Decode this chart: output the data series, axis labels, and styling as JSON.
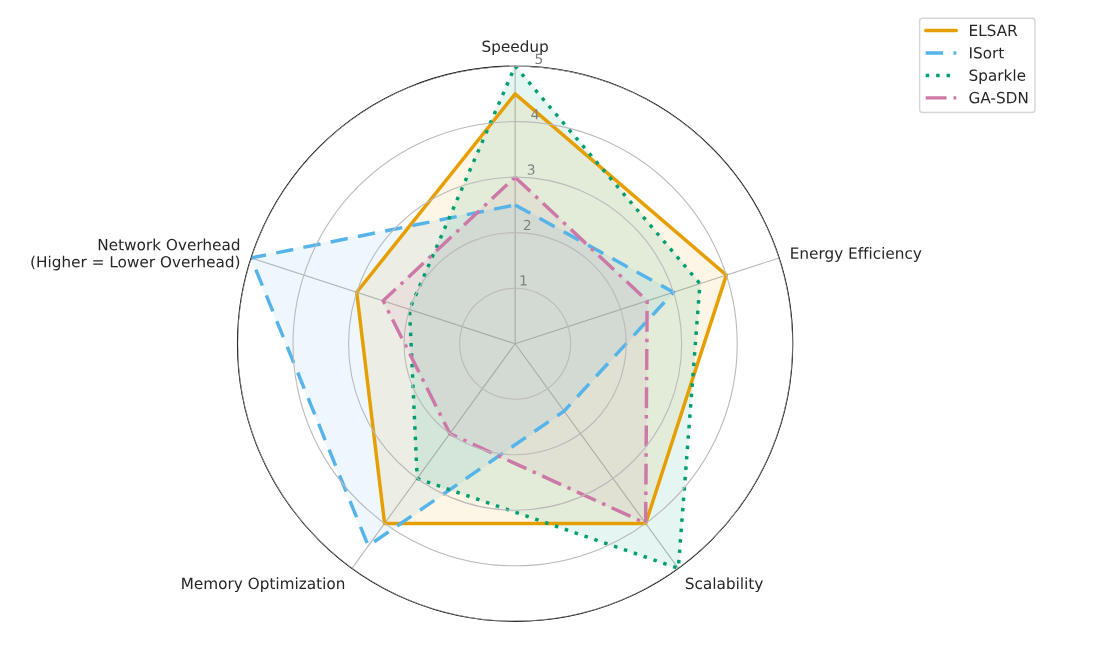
{
  "chart_data": {
    "type": "radar",
    "categories": [
      "Speedup",
      "Energy Efficiency",
      "Scalability",
      "Memory Optimization",
      "Network Overhead\n(Higher = Lower Overhead)"
    ],
    "series": [
      {
        "name": "ELSAR",
        "color": "#e69f00",
        "line_style": "solid",
        "values": [
          4.5,
          4,
          4,
          4,
          3
        ]
      },
      {
        "name": "ISort",
        "color": "#56b4e9",
        "line_style": "dashed",
        "values": [
          2.5,
          3,
          1.5,
          4.5,
          5
        ]
      },
      {
        "name": "Sparkle",
        "color": "#009e73",
        "line_style": "dotted",
        "values": [
          5,
          3.5,
          5,
          3,
          2
        ]
      },
      {
        "name": "GA-SDN",
        "color": "#cc79a7",
        "line_style": "dashdot",
        "values": [
          3,
          2.5,
          4,
          2,
          2.5
        ]
      }
    ],
    "ylim": [
      0,
      5
    ],
    "yticks": [
      1,
      2,
      3,
      4,
      5
    ],
    "grid": true,
    "legend": "top right",
    "marker": "none"
  }
}
